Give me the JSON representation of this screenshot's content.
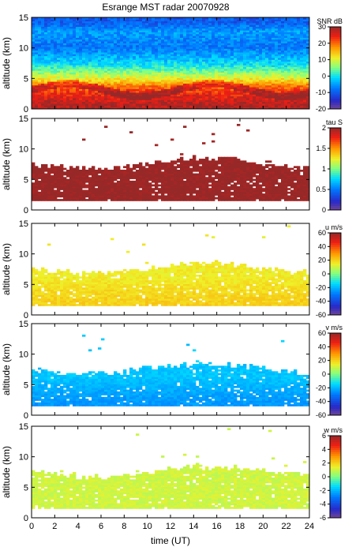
{
  "figure_title": "Esrange MST radar 20070928",
  "x_axis": {
    "label": "time (UT)",
    "ticks": [
      "0",
      "2",
      "4",
      "6",
      "8",
      "10",
      "12",
      "14",
      "16",
      "18",
      "20",
      "22",
      "24"
    ],
    "range": [
      0,
      24
    ]
  },
  "chart_data": [
    {
      "type": "heatmap",
      "title": "Esrange MST radar 20070928",
      "xlabel": "time (UT)",
      "ylabel": "altitude (km)",
      "xlim": [
        0,
        24
      ],
      "ylim": [
        0,
        15
      ],
      "y_ticks": [
        "0",
        "5",
        "10",
        "15"
      ],
      "colorbar": {
        "label": "SNR dB",
        "range": [
          -20,
          30
        ],
        "ticks": [
          "30",
          "20",
          "10",
          "0",
          "-10",
          "-20"
        ]
      },
      "data_coverage_km": [
        0,
        15
      ],
      "profile": {
        "description_values": [
          [
            0.5,
            28
          ],
          [
            2,
            25
          ],
          [
            3.5,
            20
          ],
          [
            5,
            10
          ],
          [
            7,
            0
          ],
          [
            10,
            -8
          ],
          [
            12.5,
            -5
          ],
          [
            14,
            -10
          ]
        ]
      }
    },
    {
      "type": "heatmap",
      "xlabel": "",
      "ylabel": "altitude (km)",
      "xlim": [
        0,
        24
      ],
      "ylim": [
        0,
        15
      ],
      "y_ticks": [
        "0",
        "5",
        "10",
        "15"
      ],
      "colorbar": {
        "label": "tau S",
        "range": [
          0,
          2
        ],
        "ticks": [
          "2",
          "1.5",
          "1",
          "0.5",
          "0"
        ]
      },
      "data_coverage_km": [
        1.5,
        7.5
      ],
      "profile": {
        "description_values": [
          [
            2,
            2
          ],
          [
            4,
            2
          ],
          [
            6,
            2
          ]
        ]
      }
    },
    {
      "type": "heatmap",
      "xlabel": "",
      "ylabel": "altitude (km)",
      "xlim": [
        0,
        24
      ],
      "ylim": [
        0,
        15
      ],
      "y_ticks": [
        "0",
        "5",
        "10",
        "15"
      ],
      "colorbar": {
        "label": "u m/s",
        "range": [
          -60,
          60
        ],
        "ticks": [
          "60",
          "40",
          "20",
          "0",
          "-20",
          "-40",
          "-60"
        ]
      },
      "data_coverage_km": [
        1.5,
        7.5
      ],
      "profile": {
        "description_values": [
          [
            2,
            20
          ],
          [
            4,
            18
          ],
          [
            6,
            15
          ]
        ]
      }
    },
    {
      "type": "heatmap",
      "xlabel": "",
      "ylabel": "altitude (km)",
      "xlim": [
        0,
        24
      ],
      "ylim": [
        0,
        15
      ],
      "y_ticks": [
        "0",
        "5",
        "10",
        "15"
      ],
      "colorbar": {
        "label": "v m/s",
        "range": [
          -60,
          60
        ],
        "ticks": [
          "60",
          "40",
          "20",
          "0",
          "-20",
          "-40",
          "-60"
        ]
      },
      "data_coverage_km": [
        1.5,
        7.5
      ],
      "profile": {
        "description_values": [
          [
            2,
            -25
          ],
          [
            4,
            -22
          ],
          [
            6,
            -18
          ]
        ]
      }
    },
    {
      "type": "heatmap",
      "xlabel": "time (UT)",
      "ylabel": "altitude (km)",
      "xlim": [
        0,
        24
      ],
      "ylim": [
        0,
        15
      ],
      "y_ticks": [
        "0",
        "5",
        "10",
        "15"
      ],
      "colorbar": {
        "label": "w m/s",
        "range": [
          -6,
          6
        ],
        "ticks": [
          "6",
          "4",
          "2",
          "0",
          "-2",
          "-4",
          "-6"
        ]
      },
      "data_coverage_km": [
        1.5,
        7.5
      ],
      "profile": {
        "description_values": [
          [
            2,
            1
          ],
          [
            4,
            1
          ],
          [
            6,
            1
          ]
        ]
      }
    }
  ]
}
